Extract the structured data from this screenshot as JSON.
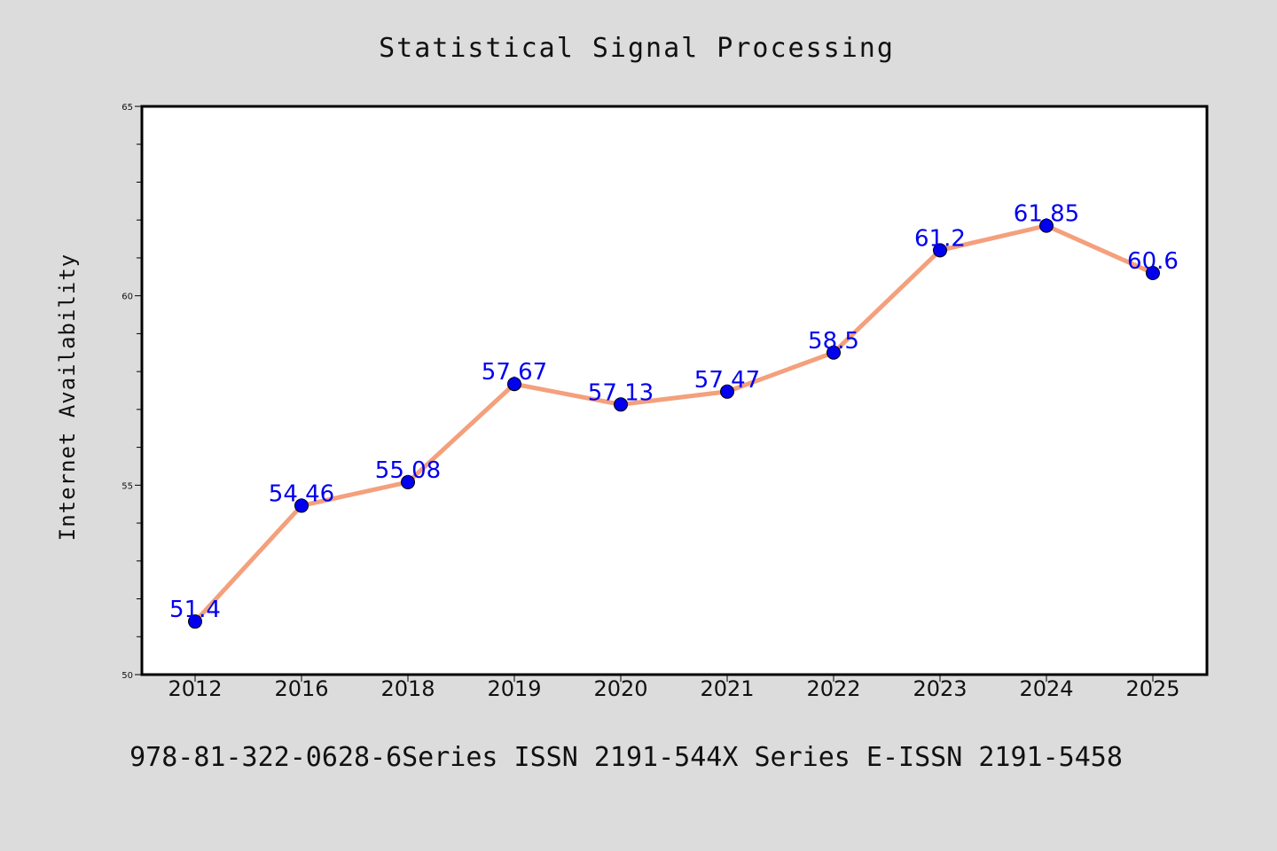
{
  "chart_data": {
    "type": "line",
    "title": "Statistical Signal Processing",
    "ylabel": "Internet Availability",
    "xlabel": "",
    "categories": [
      "2012",
      "2016",
      "2018",
      "2019",
      "2020",
      "2021",
      "2022",
      "2023",
      "2024",
      "2025"
    ],
    "series": [
      {
        "values": [
          51.4,
          54.46,
          55.08,
          57.67,
          57.13,
          57.47,
          58.5,
          61.2,
          61.85,
          60.6
        ],
        "data_labels": [
          "51.4",
          "54.46",
          "55.08",
          "57.67",
          "57.13",
          "57.47",
          "58.5",
          "61.2",
          "61.85",
          "60.6"
        ],
        "line_color": "#f4a07c",
        "marker_color": "#0000ee"
      }
    ],
    "ylim": [
      50,
      65
    ],
    "yticks": [
      50,
      55,
      60,
      65
    ],
    "ytick_labels": [
      "50",
      "55",
      "60",
      "65"
    ],
    "grid": false,
    "legend": "none"
  },
  "footer": {
    "text": "978-81-322-0628-6Series ISSN 2191-544X Series E-ISSN 2191-5458"
  },
  "colors": {
    "background": "#dcdcdc",
    "plot_background": "#ffffff",
    "axis": "#000000"
  }
}
